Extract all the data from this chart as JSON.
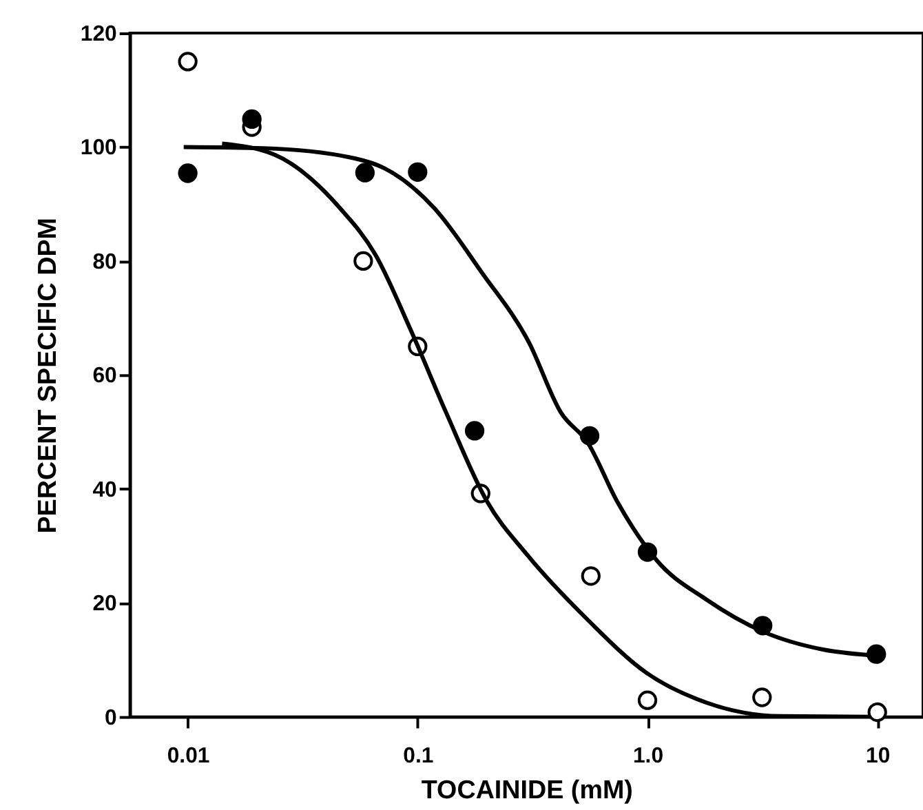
{
  "chart_data": {
    "type": "scatter",
    "xlabel": "TOCAINIDE (mM)",
    "ylabel": "PERCENT SPECIFIC DPM",
    "log": "x",
    "marker": "circle",
    "xlim": [
      0.0056,
      15.8
    ],
    "ylim": [
      0,
      120
    ],
    "xticks": [
      0.01,
      0.1,
      {
        "value": 1,
        "label": "1.0"
      },
      10
    ],
    "yticks": [
      0,
      20,
      40,
      60,
      80,
      100,
      120
    ],
    "series": [
      {
        "color": "#ffffff",
        "x": [
          0.01,
          0.019,
          0.058,
          0.1,
          0.188,
          0.567,
          1.0,
          3.15,
          10
        ],
        "values": [
          115,
          103.5,
          80,
          65,
          39.2,
          24.7,
          2.9,
          3.4,
          0.8
        ]
      },
      {
        "color": "#000000",
        "x": [
          0.01,
          0.019,
          0.059,
          0.1,
          0.177,
          0.56,
          1.0,
          3.17,
          9.9
        ],
        "values": [
          95.4,
          104.9,
          95.5,
          95.6,
          50.2,
          49.3,
          28.9,
          16.0,
          11.0
        ]
      },
      {
        "type": "line",
        "color": "#000000",
        "marker": "none",
        "x": [
          0.0141,
          0.024,
          0.0459,
          0.0655,
          0.0935,
          0.133,
          0.201,
          0.3,
          0.55,
          0.99,
          1.8,
          3.8,
          9.3
        ],
        "values": [
          100.6,
          98.6,
          89.3,
          81.1,
          67.8,
          53.4,
          37.7,
          28.4,
          17,
          7.7,
          2.5,
          0.1,
          0
        ]
      },
      {
        "type": "line",
        "color": "#000000",
        "marker": "none",
        "x": [
          0.0096,
          0.0213,
          0.0533,
          0.0715,
          0.118,
          0.19,
          0.305,
          0.42,
          0.55,
          0.74,
          1.1,
          1.8,
          3.2,
          5.8,
          9.3
        ],
        "values": [
          100,
          99.8,
          98,
          96.3,
          89.3,
          78,
          65.7,
          53.4,
          48.1,
          37.7,
          27.4,
          20.6,
          14.9,
          11.8,
          10.8
        ]
      }
    ]
  }
}
